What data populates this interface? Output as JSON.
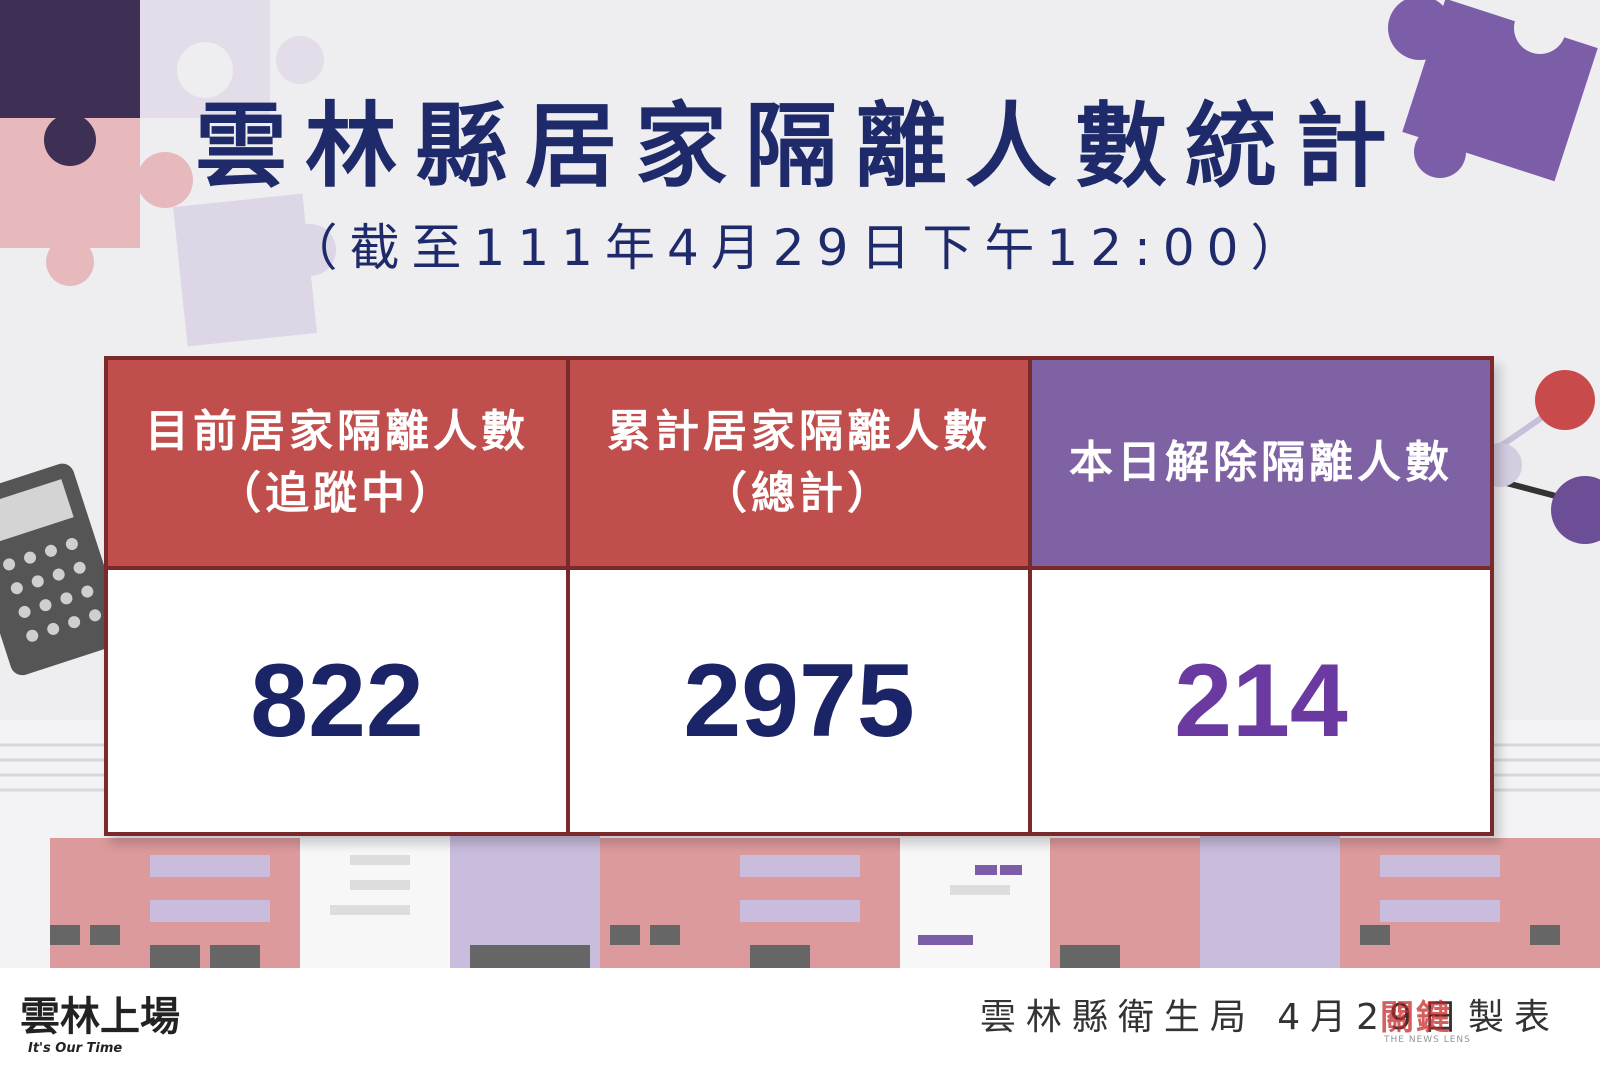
{
  "title": "雲林縣居家隔離人數統計",
  "subtitle": "（截至111年4月29日下午12:00）",
  "table": {
    "headers": [
      {
        "line1": "目前居家隔離人數",
        "line2": "（追蹤中）"
      },
      {
        "line1": "累計居家隔離人數",
        "line2": "（總計）"
      },
      {
        "line1": "本日解除隔離人數",
        "line2": ""
      }
    ],
    "values": [
      "822",
      "2975",
      "214"
    ]
  },
  "footer": {
    "logo_text": "雲林上場",
    "logo_sub": "It's Our Time",
    "org": "雲林縣衛生局  4月29日製表",
    "watermark": "關鍵",
    "watermark_sub": "THE NEWS LENS"
  },
  "colors": {
    "title": "#1f2a6a",
    "header_red": "#c04e4c",
    "header_purple": "#7f62a3",
    "value_navy": "#1a2466",
    "value_purple": "#6a3aa0"
  }
}
